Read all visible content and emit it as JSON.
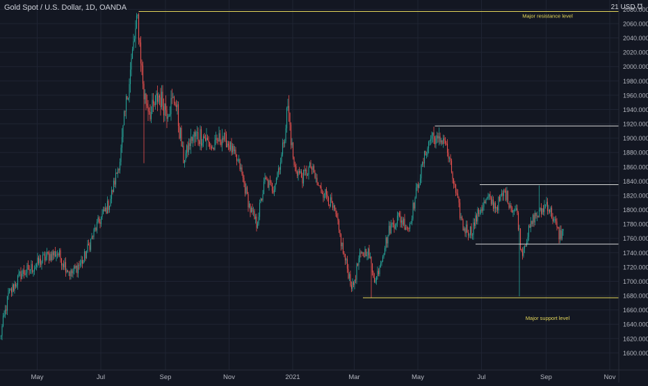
{
  "header": {
    "title": "Gold Spot / U.S. Dollar, 1D, OANDA",
    "currency": "21 USD ℧"
  },
  "colors": {
    "background": "#131722",
    "grid": "#1f2433",
    "up": "#26a69a",
    "down": "#ef5350",
    "resistance": "#e6d85a",
    "white_levels": "#d9d9d9",
    "axis_text": "#b2b5be"
  },
  "chart_data": {
    "type": "candlestick",
    "ylim": [
      1584,
      2093
    ],
    "y_ticks": [
      1600,
      1620,
      1640,
      1660,
      1680,
      1700,
      1720,
      1740,
      1760,
      1780,
      1800,
      1820,
      1840,
      1860,
      1880,
      1900,
      1920,
      1940,
      1960,
      1980,
      2000,
      2020,
      2040,
      2060,
      2080
    ],
    "y_tick_labels": [
      "1600.000",
      "1620.000",
      "1640.000",
      "1660.000",
      "1680.000",
      "1700.000",
      "1720.000",
      "1740.000",
      "1760.000",
      "1780.000",
      "1800.000",
      "1820.000",
      "1840.000",
      "1860.000",
      "1880.000",
      "1900.000",
      "1920.000",
      "1940.000",
      "1960.000",
      "1980.000",
      "2000.000",
      "2020.000",
      "2040.000",
      "2060.000",
      "2080.000"
    ],
    "x_ticks": [
      {
        "label": "May",
        "day": 31
      },
      {
        "label": "Jul",
        "day": 92
      },
      {
        "label": "Sep",
        "day": 154
      },
      {
        "label": "Nov",
        "day": 215
      },
      {
        "label": "2021",
        "day": 276
      },
      {
        "label": "Mar",
        "day": 335
      },
      {
        "label": "May",
        "day": 396
      },
      {
        "label": "Jul",
        "day": 457
      },
      {
        "label": "Sep",
        "day": 519
      },
      {
        "label": "Nov",
        "day": 580
      }
    ],
    "key_prices": [
      {
        "day": 0,
        "price": 1620
      },
      {
        "day": 8,
        "price": 1680
      },
      {
        "day": 20,
        "price": 1710
      },
      {
        "day": 32,
        "price": 1720
      },
      {
        "day": 45,
        "price": 1735
      },
      {
        "day": 55,
        "price": 1740
      },
      {
        "day": 68,
        "price": 1710
      },
      {
        "day": 80,
        "price": 1730
      },
      {
        "day": 92,
        "price": 1775
      },
      {
        "day": 105,
        "price": 1810
      },
      {
        "day": 115,
        "price": 1870
      },
      {
        "day": 122,
        "price": 1960
      },
      {
        "day": 128,
        "price": 2030
      },
      {
        "day": 132,
        "price": 2067
      },
      {
        "day": 138,
        "price": 1960
      },
      {
        "day": 145,
        "price": 1935
      },
      {
        "day": 152,
        "price": 1960
      },
      {
        "day": 160,
        "price": 1940
      },
      {
        "day": 168,
        "price": 1955
      },
      {
        "day": 176,
        "price": 1870
      },
      {
        "day": 184,
        "price": 1900
      },
      {
        "day": 194,
        "price": 1905
      },
      {
        "day": 204,
        "price": 1885
      },
      {
        "day": 212,
        "price": 1905
      },
      {
        "day": 220,
        "price": 1890
      },
      {
        "day": 230,
        "price": 1860
      },
      {
        "day": 240,
        "price": 1800
      },
      {
        "day": 246,
        "price": 1780
      },
      {
        "day": 254,
        "price": 1840
      },
      {
        "day": 262,
        "price": 1830
      },
      {
        "day": 270,
        "price": 1875
      },
      {
        "day": 276,
        "price": 1945
      },
      {
        "day": 282,
        "price": 1860
      },
      {
        "day": 290,
        "price": 1845
      },
      {
        "day": 298,
        "price": 1860
      },
      {
        "day": 306,
        "price": 1830
      },
      {
        "day": 314,
        "price": 1820
      },
      {
        "day": 322,
        "price": 1790
      },
      {
        "day": 330,
        "price": 1735
      },
      {
        "day": 338,
        "price": 1690
      },
      {
        "day": 344,
        "price": 1730
      },
      {
        "day": 352,
        "price": 1745
      },
      {
        "day": 360,
        "price": 1700
      },
      {
        "day": 366,
        "price": 1735
      },
      {
        "day": 374,
        "price": 1775
      },
      {
        "day": 382,
        "price": 1790
      },
      {
        "day": 392,
        "price": 1775
      },
      {
        "day": 400,
        "price": 1830
      },
      {
        "day": 408,
        "price": 1880
      },
      {
        "day": 414,
        "price": 1905
      },
      {
        "day": 420,
        "price": 1895
      },
      {
        "day": 426,
        "price": 1900
      },
      {
        "day": 432,
        "price": 1860
      },
      {
        "day": 438,
        "price": 1815
      },
      {
        "day": 444,
        "price": 1775
      },
      {
        "day": 452,
        "price": 1770
      },
      {
        "day": 460,
        "price": 1800
      },
      {
        "day": 468,
        "price": 1815
      },
      {
        "day": 476,
        "price": 1805
      },
      {
        "day": 484,
        "price": 1825
      },
      {
        "day": 490,
        "price": 1805
      },
      {
        "day": 496,
        "price": 1795
      },
      {
        "day": 500,
        "price": 1740
      },
      {
        "day": 506,
        "price": 1765
      },
      {
        "day": 512,
        "price": 1790
      },
      {
        "day": 518,
        "price": 1795
      },
      {
        "day": 524,
        "price": 1810
      },
      {
        "day": 530,
        "price": 1790
      },
      {
        "day": 536,
        "price": 1765
      },
      {
        "day": 540,
        "price": 1768
      }
    ],
    "wick_extremes": [
      {
        "day": 133,
        "high": 2075
      },
      {
        "day": 138,
        "low": 1865
      },
      {
        "day": 277,
        "high": 1960
      },
      {
        "day": 356,
        "low": 1677
      },
      {
        "day": 416,
        "high": 1916
      },
      {
        "day": 498,
        "low": 1679
      },
      {
        "day": 517,
        "high": 1834
      }
    ],
    "levels": [
      {
        "price": 2077,
        "start_day": 133,
        "color": "resistance"
      },
      {
        "price": 1917,
        "start_day": 417,
        "color": "white_levels"
      },
      {
        "price": 1835,
        "start_day": 460,
        "color": "white_levels"
      },
      {
        "price": 1752,
        "start_day": 456,
        "color": "white_levels"
      },
      {
        "price": 1677,
        "start_day": 348,
        "color": "resistance"
      }
    ],
    "annotations": [
      {
        "text": "Major resistance level",
        "day": 525,
        "price": 2068
      },
      {
        "text": "Major support level",
        "day": 525,
        "price": 1646
      }
    ]
  }
}
